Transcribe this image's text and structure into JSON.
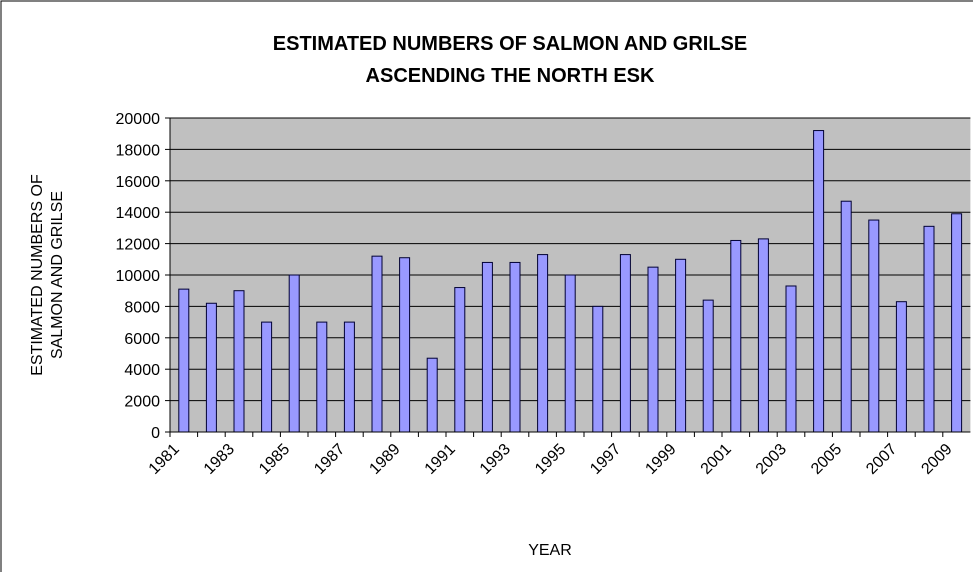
{
  "chart_data": {
    "type": "bar",
    "title": [
      "ESTIMATED NUMBERS OF SALMON AND GRILSE",
      "ASCENDING THE NORTH ESK"
    ],
    "ylabel": [
      "ESTIMATED NUMBERS OF",
      "SALMON AND GRILSE"
    ],
    "xlabel": "YEAR",
    "categories": [
      "1981",
      null,
      "1983",
      null,
      "1985",
      null,
      "1987",
      null,
      "1989",
      null,
      "1991",
      null,
      "1993",
      null,
      "1995",
      null,
      "1997",
      null,
      "1999",
      null,
      "2001",
      null,
      "2003",
      null,
      "2005",
      null,
      "2007",
      null,
      "2009"
    ],
    "values": [
      9100,
      8200,
      9000,
      7000,
      10000,
      7000,
      7000,
      11200,
      11100,
      4700,
      9200,
      10800,
      10800,
      11300,
      10000,
      8000,
      11300,
      10500,
      11000,
      8400,
      12200,
      12300,
      9300,
      19200,
      14700,
      13500,
      8300,
      13100,
      13900
    ],
    "color": "#9999ff",
    "ylim": [
      0,
      20000
    ],
    "yticks": [
      0,
      2000,
      4000,
      6000,
      8000,
      10000,
      12000,
      14000,
      16000,
      18000,
      20000
    ],
    "grid": true
  }
}
